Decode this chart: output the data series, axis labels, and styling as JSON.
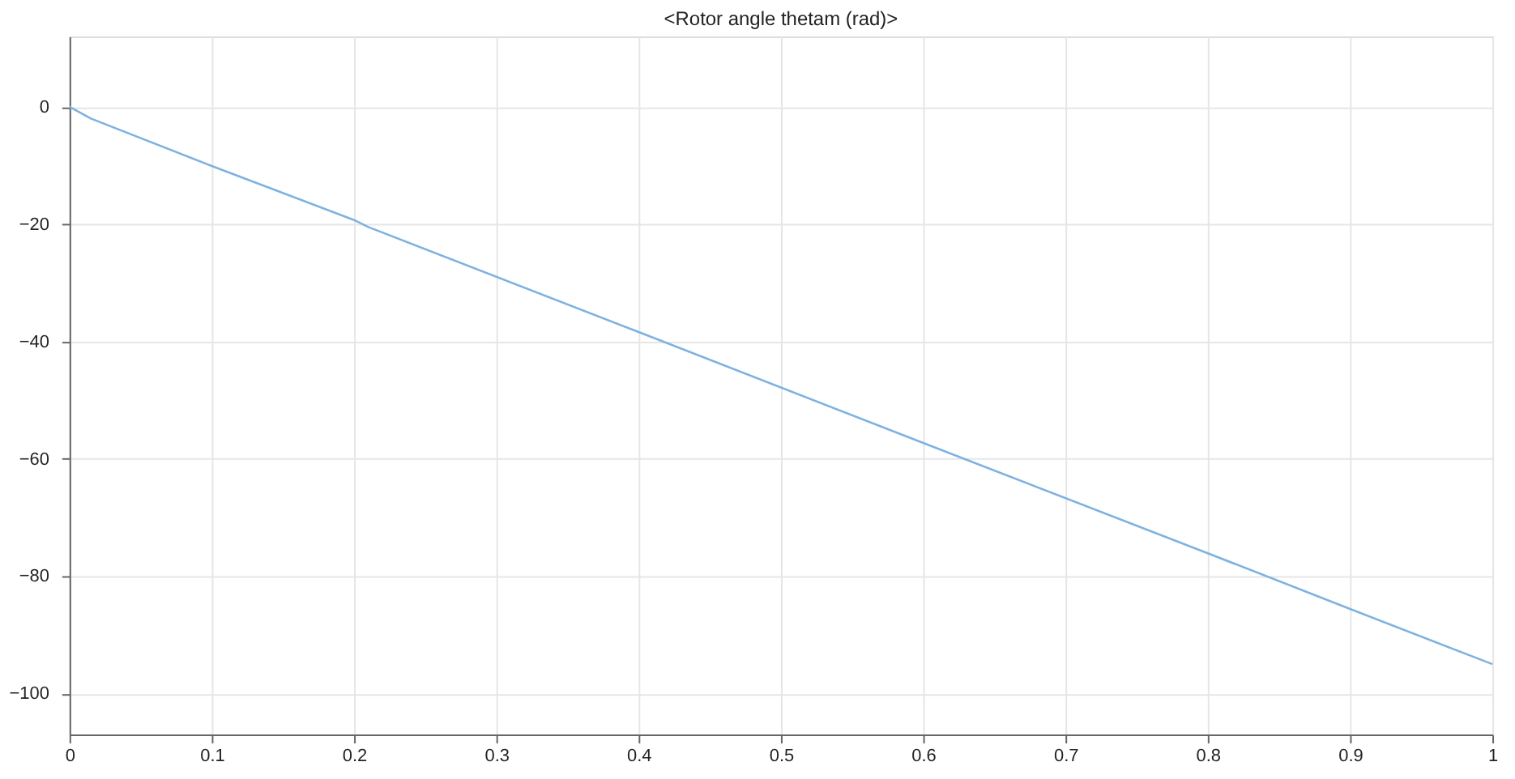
{
  "chart_data": {
    "type": "line",
    "title": "<Rotor angle thetam (rad)>",
    "series": [
      {
        "color": "#7fb2e0",
        "x": [
          0,
          0.015,
          0.1,
          0.2,
          0.21,
          0.4,
          0.6,
          0.8,
          0.9,
          1
        ],
        "values": [
          0,
          -2,
          -10.1,
          -19.3,
          -20.5,
          -38.4,
          -57.3,
          -76.1,
          -85.6,
          -95
        ]
      }
    ],
    "xlim": [
      0,
      1
    ],
    "xticks": [
      0,
      0.1,
      0.2,
      0.3,
      0.4,
      0.5,
      0.6,
      0.7,
      0.8,
      0.9,
      1
    ],
    "ylim": [
      -107,
      12
    ],
    "yticks": [
      -100,
      -80,
      -60,
      -40,
      -20,
      0
    ],
    "grid": true,
    "legend": false,
    "marker": "none",
    "line_style": "solid"
  }
}
